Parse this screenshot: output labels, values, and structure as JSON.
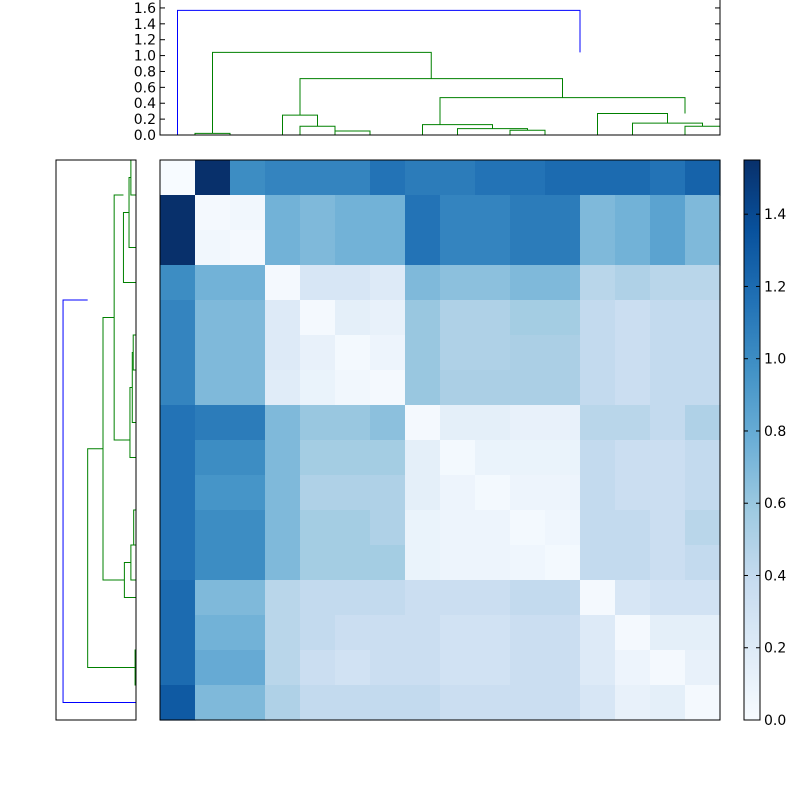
{
  "chart_data": [
    {
      "type": "heatmap",
      "title": "",
      "xlabel": "",
      "ylabel": "",
      "colormap": "Blues",
      "rows": 16,
      "cols": 16,
      "values": [
        [
          0.0,
          1.55,
          1.0,
          1.05,
          1.05,
          1.05,
          1.15,
          1.1,
          1.1,
          1.15,
          1.15,
          1.2,
          1.2,
          1.2,
          1.15,
          1.25
        ],
        [
          1.55,
          0.02,
          0.05,
          0.75,
          0.7,
          0.75,
          0.75,
          1.15,
          1.05,
          1.05,
          1.1,
          1.1,
          0.7,
          0.75,
          0.85,
          0.7
        ],
        [
          1.55,
          0.05,
          0.02,
          0.75,
          0.7,
          0.75,
          0.75,
          1.15,
          1.05,
          1.05,
          1.1,
          1.1,
          0.7,
          0.75,
          0.85,
          0.7
        ],
        [
          1.0,
          0.75,
          0.75,
          0.02,
          0.25,
          0.25,
          0.2,
          0.7,
          0.65,
          0.65,
          0.7,
          0.7,
          0.45,
          0.5,
          0.45,
          0.45
        ],
        [
          1.05,
          0.7,
          0.7,
          0.2,
          0.02,
          0.15,
          0.12,
          0.6,
          0.5,
          0.5,
          0.55,
          0.55,
          0.4,
          0.35,
          0.4,
          0.4
        ],
        [
          1.05,
          0.7,
          0.7,
          0.2,
          0.12,
          0.03,
          0.08,
          0.6,
          0.5,
          0.5,
          0.52,
          0.52,
          0.4,
          0.35,
          0.4,
          0.4
        ],
        [
          1.05,
          0.7,
          0.7,
          0.18,
          0.1,
          0.05,
          0.02,
          0.6,
          0.52,
          0.52,
          0.52,
          0.52,
          0.4,
          0.35,
          0.4,
          0.4
        ],
        [
          1.15,
          1.1,
          1.1,
          0.7,
          0.6,
          0.6,
          0.65,
          0.02,
          0.15,
          0.15,
          0.12,
          0.12,
          0.45,
          0.45,
          0.4,
          0.5
        ],
        [
          1.15,
          1.0,
          1.0,
          0.7,
          0.55,
          0.55,
          0.55,
          0.15,
          0.03,
          0.1,
          0.1,
          0.1,
          0.4,
          0.35,
          0.35,
          0.4
        ],
        [
          1.15,
          0.95,
          0.95,
          0.7,
          0.5,
          0.5,
          0.5,
          0.15,
          0.08,
          0.03,
          0.08,
          0.08,
          0.4,
          0.35,
          0.35,
          0.4
        ],
        [
          1.15,
          1.0,
          1.0,
          0.7,
          0.55,
          0.55,
          0.5,
          0.1,
          0.08,
          0.08,
          0.03,
          0.06,
          0.4,
          0.4,
          0.35,
          0.45
        ],
        [
          1.15,
          1.0,
          1.0,
          0.7,
          0.55,
          0.55,
          0.55,
          0.1,
          0.08,
          0.08,
          0.06,
          0.03,
          0.4,
          0.4,
          0.35,
          0.4
        ],
        [
          1.2,
          0.7,
          0.7,
          0.45,
          0.4,
          0.4,
          0.4,
          0.35,
          0.35,
          0.35,
          0.4,
          0.4,
          0.02,
          0.25,
          0.3,
          0.3
        ],
        [
          1.2,
          0.75,
          0.75,
          0.45,
          0.4,
          0.35,
          0.35,
          0.35,
          0.3,
          0.3,
          0.35,
          0.35,
          0.2,
          0.02,
          0.15,
          0.15
        ],
        [
          1.2,
          0.8,
          0.8,
          0.45,
          0.35,
          0.3,
          0.35,
          0.35,
          0.3,
          0.3,
          0.35,
          0.35,
          0.2,
          0.08,
          0.02,
          0.12
        ],
        [
          1.3,
          0.7,
          0.7,
          0.5,
          0.4,
          0.4,
          0.4,
          0.4,
          0.35,
          0.35,
          0.35,
          0.35,
          0.25,
          0.12,
          0.15,
          0.02
        ]
      ]
    },
    {
      "type": "dendrogram",
      "orientation": "top",
      "ylim": [
        0,
        1.7
      ],
      "yticks": [
        "0.0",
        "0.2",
        "0.4",
        "0.6",
        "0.8",
        "1.0",
        "1.2",
        "1.4",
        "1.6"
      ],
      "ytick_values": [
        0,
        0.2,
        0.4,
        0.6,
        0.8,
        1.0,
        1.2,
        1.4,
        1.6
      ],
      "leaf_count": 16,
      "links_colors": {
        "root": "#0000ff",
        "cluster": "#008000"
      },
      "merges": [
        {
          "left": 0.5,
          "right": 12.0,
          "height": 1.57,
          "lh": 0,
          "rh": 1.04,
          "color": "root"
        },
        {
          "left": 1.5,
          "right": 7.75,
          "height": 1.04,
          "lh": 0.02,
          "rh": 0.71,
          "color": "cluster"
        },
        {
          "left": 1.0,
          "right": 2.0,
          "height": 0.02,
          "lh": 0,
          "rh": 0,
          "color": "cluster"
        },
        {
          "left": 4.0,
          "right": 11.5,
          "height": 0.71,
          "lh": 0.25,
          "rh": 0.47,
          "color": "cluster"
        },
        {
          "left": 3.5,
          "right": 4.5,
          "height": 0.25,
          "lh": 0,
          "rh": 0.11,
          "color": "cluster"
        },
        {
          "left": 4.0,
          "right": 5.0,
          "height": 0.11,
          "lh": 0,
          "rh": 0.05,
          "color": "cluster"
        },
        {
          "left": 5.0,
          "right": 6.0,
          "height": 0.05,
          "lh": 0,
          "rh": 0,
          "color": "cluster"
        },
        {
          "left": 8.0,
          "right": 15.0,
          "height": 0.47,
          "lh": 0.13,
          "rh": 0.27,
          "color": "cluster"
        },
        {
          "left": 7.5,
          "right": 9.5,
          "height": 0.13,
          "lh": 0,
          "rh": 0.08,
          "color": "cluster"
        },
        {
          "left": 8.5,
          "right": 10.5,
          "height": 0.08,
          "lh": 0,
          "rh": 0.06,
          "color": "cluster"
        },
        {
          "left": 10.0,
          "right": 11.0,
          "height": 0.06,
          "lh": 0,
          "rh": 0,
          "color": "cluster"
        },
        {
          "left": 12.5,
          "right": 14.5,
          "height": 0.27,
          "lh": 0,
          "rh": 0.15,
          "color": "cluster"
        },
        {
          "left": 13.5,
          "right": 15.5,
          "height": 0.15,
          "lh": 0,
          "rh": 0.11,
          "color": "cluster"
        },
        {
          "left": 15.0,
          "right": 16.0,
          "height": 0.11,
          "lh": 0,
          "rh": 0,
          "color": "cluster"
        }
      ]
    },
    {
      "type": "colorbar",
      "range": [
        0,
        1.55
      ],
      "ticks": [
        "0.0",
        "0.2",
        "0.4",
        "0.6",
        "0.8",
        "1.0",
        "1.2",
        "1.4"
      ],
      "tick_values": [
        0,
        0.2,
        0.4,
        0.6,
        0.8,
        1.0,
        1.2,
        1.4
      ]
    }
  ]
}
